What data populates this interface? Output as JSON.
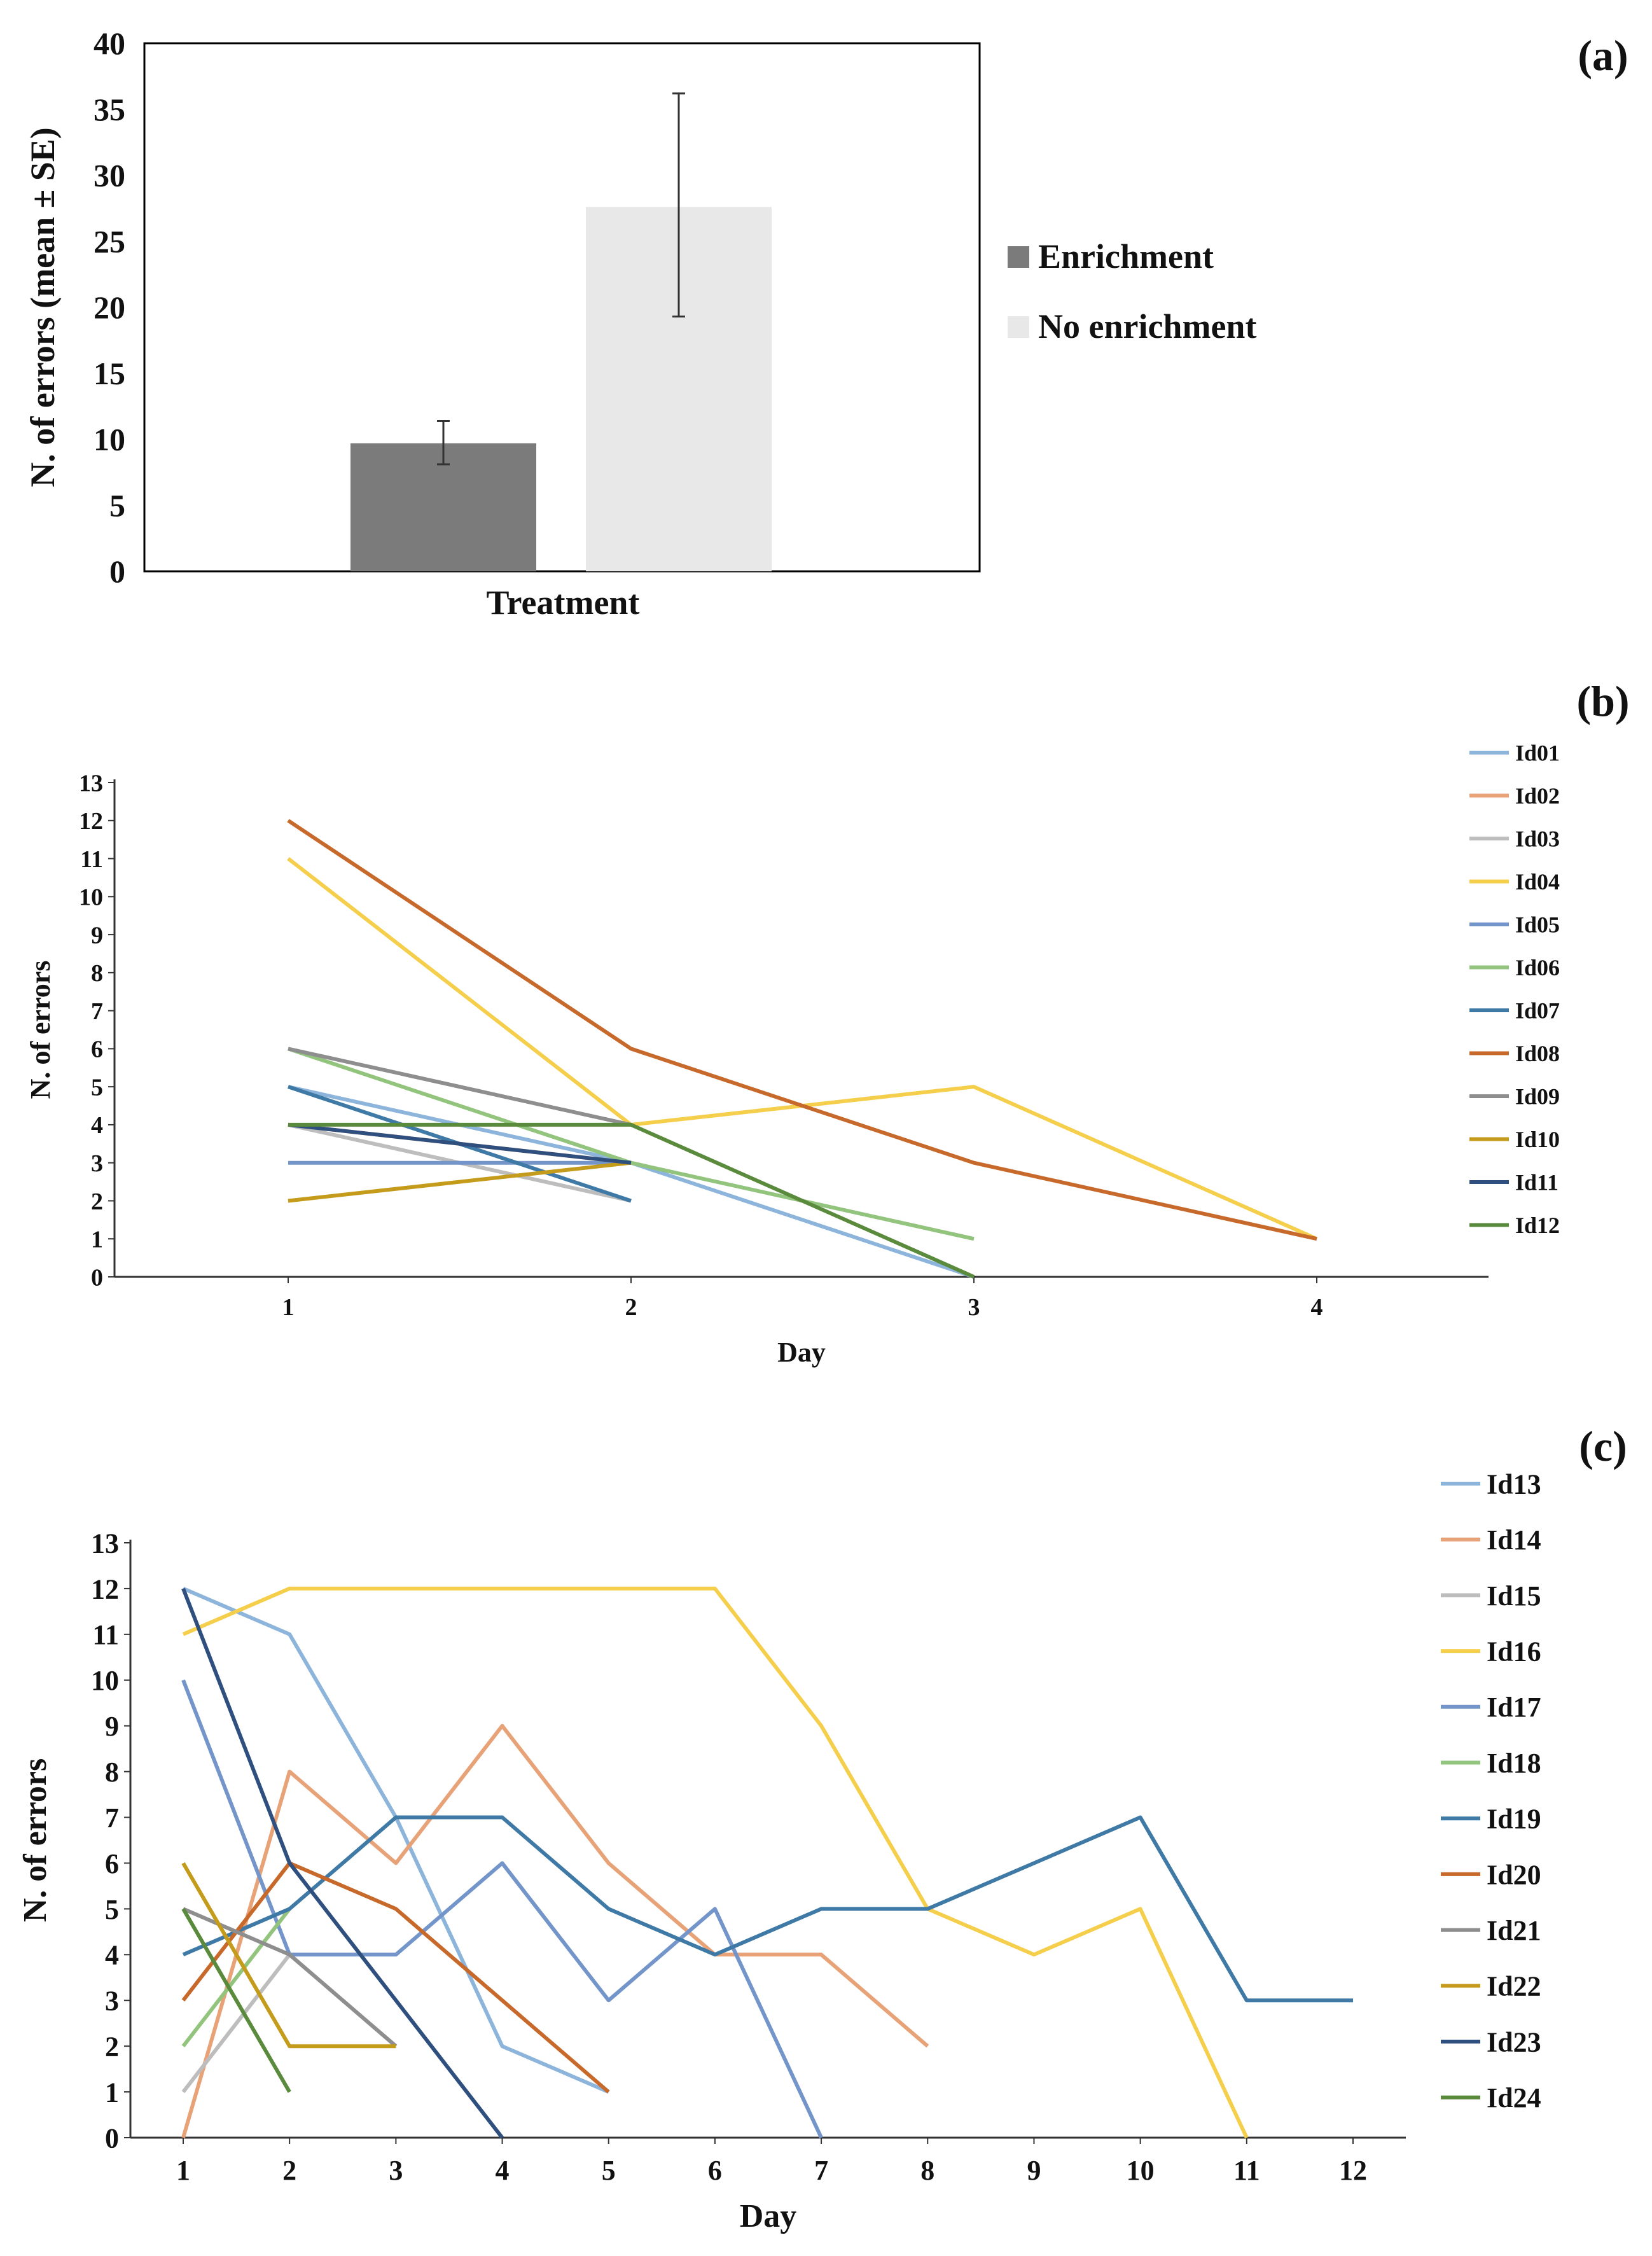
{
  "chart_data": [
    {
      "panel": "(a)",
      "type": "bar",
      "title": "",
      "xlabel": "Treatment",
      "ylabel": "N. of errors (mean ± SE)",
      "ylim": [
        0,
        40
      ],
      "yticks": [
        "0",
        "5",
        "10",
        "15",
        "20",
        "25",
        "30",
        "35",
        "40"
      ],
      "grid": false,
      "legend": "right",
      "series": [
        {
          "name": "Enrichment",
          "value": 9.7,
          "se_low": 8.1,
          "se_high": 11.4,
          "color": "#7b7b7b"
        },
        {
          "name": "No enrichment",
          "value": 27.6,
          "se_low": 19.3,
          "se_high": 36.2,
          "color": "#e8e8e8"
        }
      ]
    },
    {
      "panel": "(b)",
      "type": "line",
      "xlabel": "Day",
      "ylabel": "N. of errors",
      "xticks": [
        "1",
        "2",
        "3",
        "4"
      ],
      "yticks": [
        "0",
        "1",
        "2",
        "3",
        "4",
        "5",
        "6",
        "7",
        "8",
        "9",
        "10",
        "11",
        "12",
        "13"
      ],
      "ylim": [
        0,
        13
      ],
      "legend": "right",
      "series": [
        {
          "name": "Id01",
          "color": "#8db4db",
          "x": [
            1,
            2,
            3
          ],
          "y": [
            5,
            3,
            0
          ]
        },
        {
          "name": "Id02",
          "color": "#e8a277",
          "x": [
            1,
            2
          ],
          "y": [
            4,
            3
          ]
        },
        {
          "name": "Id03",
          "color": "#bdbdbd",
          "x": [
            1,
            2
          ],
          "y": [
            4,
            2
          ]
        },
        {
          "name": "Id04",
          "color": "#f5cf4b",
          "x": [
            1,
            2,
            3,
            4
          ],
          "y": [
            11,
            4,
            5,
            1
          ]
        },
        {
          "name": "Id05",
          "color": "#7395c9",
          "x": [
            1,
            2
          ],
          "y": [
            3,
            3
          ]
        },
        {
          "name": "Id06",
          "color": "#93c47d",
          "x": [
            1,
            2,
            3
          ],
          "y": [
            6,
            3,
            1
          ]
        },
        {
          "name": "Id07",
          "color": "#3f7aa6",
          "x": [
            1,
            2
          ],
          "y": [
            5,
            2
          ]
        },
        {
          "name": "Id08",
          "color": "#c8692c",
          "x": [
            1,
            2,
            3,
            4
          ],
          "y": [
            12,
            6,
            3,
            1
          ]
        },
        {
          "name": "Id09",
          "color": "#8e8e8e",
          "x": [
            1,
            2
          ],
          "y": [
            6,
            4
          ]
        },
        {
          "name": "Id10",
          "color": "#c49b1a",
          "x": [
            1,
            2
          ],
          "y": [
            2,
            3
          ]
        },
        {
          "name": "Id11",
          "color": "#2f4f7f",
          "x": [
            1,
            2
          ],
          "y": [
            4,
            3
          ]
        },
        {
          "name": "Id12",
          "color": "#5a8a3c",
          "x": [
            1,
            2,
            3
          ],
          "y": [
            4,
            4,
            0
          ]
        }
      ]
    },
    {
      "panel": "(c)",
      "type": "line",
      "xlabel": "Day",
      "ylabel": "N. of errors",
      "xticks": [
        "1",
        "2",
        "3",
        "4",
        "5",
        "6",
        "7",
        "8",
        "9",
        "10",
        "11",
        "12"
      ],
      "yticks": [
        "0",
        "1",
        "2",
        "3",
        "4",
        "5",
        "6",
        "7",
        "8",
        "9",
        "10",
        "11",
        "12",
        "13"
      ],
      "ylim": [
        0,
        13
      ],
      "legend": "right",
      "series": [
        {
          "name": "Id13",
          "color": "#8db4db",
          "x": [
            1,
            2,
            3,
            4,
            5
          ],
          "y": [
            12,
            11,
            7,
            2,
            1
          ]
        },
        {
          "name": "Id14",
          "color": "#e8a277",
          "x": [
            1,
            2,
            3,
            4,
            5,
            6,
            7,
            8
          ],
          "y": [
            0,
            8,
            6,
            9,
            6,
            4,
            4,
            2
          ]
        },
        {
          "name": "Id15",
          "color": "#bdbdbd",
          "x": [
            1,
            2,
            3
          ],
          "y": [
            1,
            4,
            2
          ]
        },
        {
          "name": "Id16",
          "color": "#f5cf4b",
          "x": [
            1,
            2,
            3,
            4,
            5,
            6,
            7,
            8,
            9,
            10,
            11
          ],
          "y": [
            11,
            12,
            12,
            12,
            12,
            12,
            9,
            5,
            4,
            5,
            0
          ]
        },
        {
          "name": "Id17",
          "color": "#7395c9",
          "x": [
            1,
            2,
            3,
            4,
            5,
            6,
            7
          ],
          "y": [
            10,
            4,
            4,
            6,
            3,
            5,
            0
          ]
        },
        {
          "name": "Id18",
          "color": "#93c47d",
          "x": [
            1,
            2
          ],
          "y": [
            2,
            5
          ]
        },
        {
          "name": "Id19",
          "color": "#3f7aa6",
          "x": [
            1,
            2,
            3,
            4,
            5,
            6,
            7,
            8,
            9,
            10,
            11,
            12
          ],
          "y": [
            4,
            5,
            7,
            7,
            5,
            4,
            5,
            5,
            6,
            7,
            3,
            3
          ]
        },
        {
          "name": "Id20",
          "color": "#c8692c",
          "x": [
            1,
            2,
            3,
            4,
            5
          ],
          "y": [
            3,
            6,
            5,
            3,
            1
          ]
        },
        {
          "name": "Id21",
          "color": "#8e8e8e",
          "x": [
            1,
            2,
            3
          ],
          "y": [
            5,
            4,
            2
          ]
        },
        {
          "name": "Id22",
          "color": "#c49b1a",
          "x": [
            1,
            2,
            3
          ],
          "y": [
            6,
            2,
            2
          ]
        },
        {
          "name": "Id23",
          "color": "#2f4f7f",
          "x": [
            1,
            2,
            3,
            4
          ],
          "y": [
            12,
            6,
            3,
            0
          ]
        },
        {
          "name": "Id24",
          "color": "#5a8a3c",
          "x": [
            1,
            2
          ],
          "y": [
            5,
            1
          ]
        }
      ]
    }
  ]
}
